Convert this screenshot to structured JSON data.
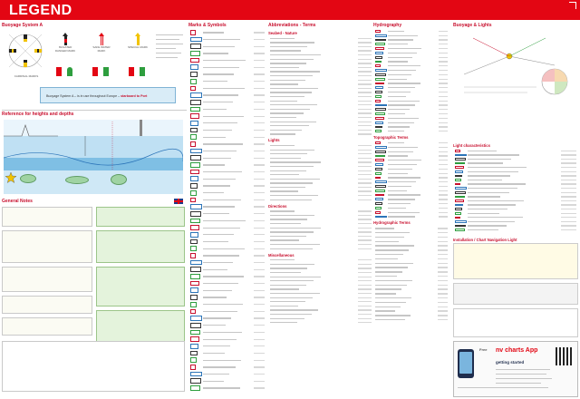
{
  "header": {
    "title": "LEGEND"
  },
  "colors": {
    "accent": "#e30613",
    "sea": "#bfe0f3",
    "land": "#9fd3a3",
    "note_bg": "#e4f3dc"
  },
  "col_a": {
    "buoyage_title": "Buoyage System A",
    "banner_text": "Buoyage System A – is in use throughout Europe – ",
    "banner_highlight": "starboard to Port",
    "cardinal_labels": [
      "CARDINAL MARKS",
      "ISOLATED DANGER MARK",
      "SAFE WATER MARK",
      "SPECIAL MARK"
    ],
    "depth_title": "Reference for heights and depths",
    "notes_title": "General Notes"
  },
  "col_b": {
    "title": "Marks & Symbols",
    "row_count_visual": 52
  },
  "col_c": {
    "title": "Abbreviations - Terms",
    "sub1": "Seabed - Nature",
    "sub2": "Lights",
    "sub3": "Directions",
    "sub4": "Miscellaneous"
  },
  "col_d": {
    "title": "Hydrography",
    "sub1": "Topographic Terms",
    "sub2": "Hydrographic Terms"
  },
  "col_e": {
    "title": "Buoyage & Lights",
    "sub1": "Light characteristics",
    "sub2": "Light description",
    "sub3": "Installation / Chart Navigation Light",
    "app_title_line1": "Free",
    "app_title_line2": "nv charts App",
    "app_sub": "getting started"
  },
  "icons": [
    "compass-rose-icon",
    "uk-flag-icon",
    "qr-code-icon",
    "phone-icon"
  ]
}
